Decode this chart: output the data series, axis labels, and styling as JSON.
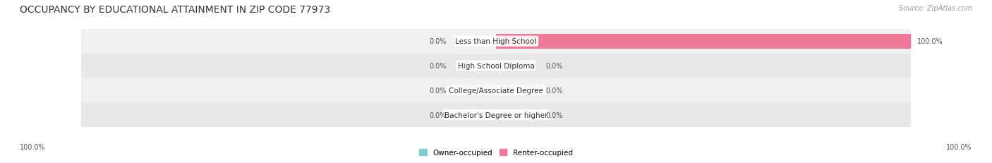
{
  "title": "OCCUPANCY BY EDUCATIONAL ATTAINMENT IN ZIP CODE 77973",
  "source": "Source: ZipAtlas.com",
  "categories": [
    "Less than High School",
    "High School Diploma",
    "College/Associate Degree",
    "Bachelor's Degree or higher"
  ],
  "owner_values": [
    0.0,
    0.0,
    0.0,
    0.0
  ],
  "renter_values": [
    100.0,
    0.0,
    0.0,
    0.0
  ],
  "owner_color": "#7ecece",
  "renter_color": "#f07898",
  "row_bg_even": "#f0f0f0",
  "row_bg_odd": "#e8e8e8",
  "title_fontsize": 10,
  "label_fontsize": 7.5,
  "annotation_fontsize": 7,
  "legend_fontsize": 7.5,
  "source_fontsize": 7,
  "figsize": [
    14.06,
    2.32
  ],
  "dpi": 100
}
